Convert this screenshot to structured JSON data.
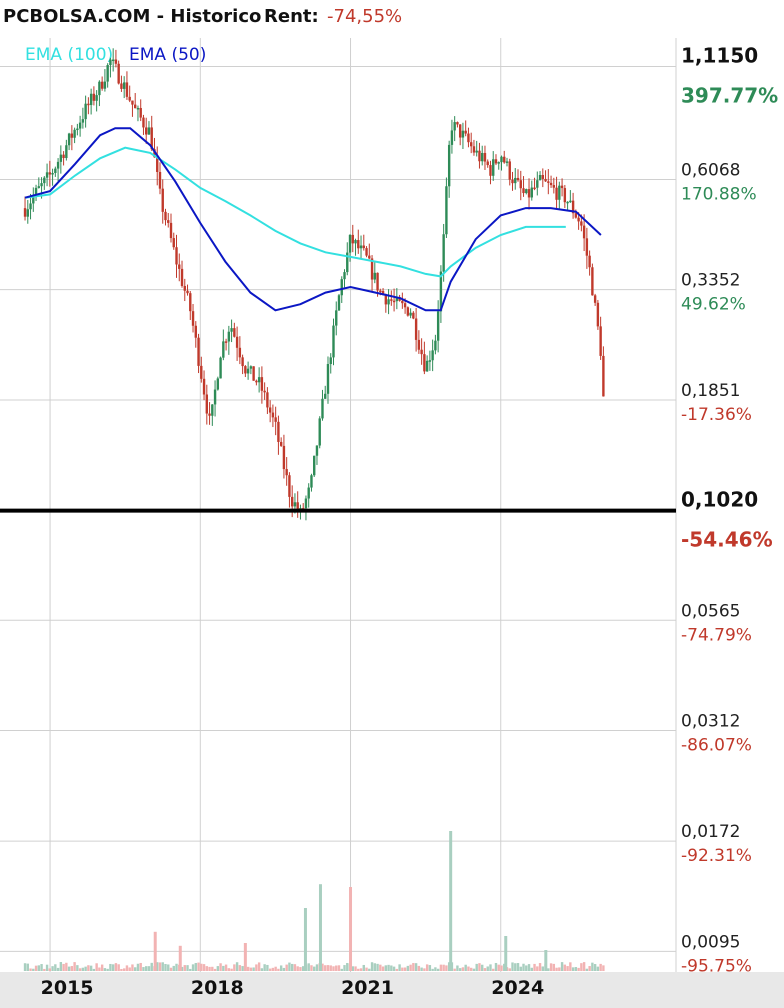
{
  "header": {
    "site": "PCBOLSA.COM - Historico",
    "rent_label": "Rent:",
    "rent_value": "-74,55%"
  },
  "legend": {
    "ema100_label": "EMA (100)",
    "ema50_label": "EMA (50)"
  },
  "colors": {
    "up": "#2e8b57",
    "down": "#c0392b",
    "ema100": "#33e0e0",
    "ema50": "#0b17c4",
    "grid": "#d0d0d0",
    "reference_line": "#000000",
    "vol_up": "#a9cfc0",
    "vol_down": "#f2b3b3",
    "pct_up": "#2e8b57",
    "pct_down": "#c0392b",
    "footer_bg": "#e8e8e8"
  },
  "chart_data": {
    "type": "candlestick",
    "y_scale": "log",
    "ylim": [
      0.0085,
      1.3
    ],
    "xlim": [
      2014.0,
      2027.5
    ],
    "reference_price": 0.102,
    "y_ticks": [
      {
        "price": "1,1150",
        "pct": "397.77%",
        "value": 1.115,
        "emphasis": true
      },
      {
        "price": "0,6068",
        "pct": "170.88%",
        "value": 0.6068,
        "emphasis": false
      },
      {
        "price": "0,3352",
        "pct": "49.62%",
        "value": 0.3352,
        "emphasis": false
      },
      {
        "price": "0,1851",
        "pct": "-17.36%",
        "value": 0.1851,
        "emphasis": false
      },
      {
        "price": "0,1020",
        "pct": "-54.46%",
        "value": 0.102,
        "emphasis": true
      },
      {
        "price": "0,0565",
        "pct": "-74.79%",
        "value": 0.0565,
        "emphasis": false
      },
      {
        "price": "0,0312",
        "pct": "-86.07%",
        "value": 0.0312,
        "emphasis": false
      },
      {
        "price": "0,0172",
        "pct": "-92.31%",
        "value": 0.0172,
        "emphasis": false
      },
      {
        "price": "0,0095",
        "pct": "-95.75%",
        "value": 0.0095,
        "emphasis": false
      }
    ],
    "x_ticks": [
      {
        "label": "2015",
        "value": 2015.0
      },
      {
        "label": "2018",
        "value": 2018.0
      },
      {
        "label": "2021",
        "value": 2021.0
      },
      {
        "label": "2024",
        "value": 2024.0
      }
    ],
    "price_path": [
      [
        2014.5,
        0.52
      ],
      [
        2014.7,
        0.56
      ],
      [
        2015.0,
        0.62
      ],
      [
        2015.3,
        0.72
      ],
      [
        2015.7,
        0.88
      ],
      [
        2016.0,
        1.0
      ],
      [
        2016.2,
        1.15
      ],
      [
        2016.4,
        1.05
      ],
      [
        2016.7,
        0.88
      ],
      [
        2017.0,
        0.78
      ],
      [
        2017.2,
        0.55
      ],
      [
        2017.5,
        0.4
      ],
      [
        2017.8,
        0.3
      ],
      [
        2018.0,
        0.22
      ],
      [
        2018.2,
        0.16
      ],
      [
        2018.4,
        0.24
      ],
      [
        2018.6,
        0.28
      ],
      [
        2018.9,
        0.22
      ],
      [
        2019.2,
        0.2
      ],
      [
        2019.5,
        0.16
      ],
      [
        2019.8,
        0.11
      ],
      [
        2020.0,
        0.1
      ],
      [
        2020.2,
        0.115
      ],
      [
        2020.5,
        0.2
      ],
      [
        2020.8,
        0.34
      ],
      [
        2021.0,
        0.44
      ],
      [
        2021.3,
        0.4
      ],
      [
        2021.6,
        0.33
      ],
      [
        2021.9,
        0.31
      ],
      [
        2022.2,
        0.3
      ],
      [
        2022.5,
        0.22
      ],
      [
        2022.7,
        0.26
      ],
      [
        2022.85,
        0.42
      ],
      [
        2023.0,
        0.82
      ],
      [
        2023.2,
        0.78
      ],
      [
        2023.5,
        0.7
      ],
      [
        2023.8,
        0.64
      ],
      [
        2024.0,
        0.7
      ],
      [
        2024.2,
        0.62
      ],
      [
        2024.5,
        0.55
      ],
      [
        2024.8,
        0.6
      ],
      [
        2025.0,
        0.58
      ],
      [
        2025.3,
        0.55
      ],
      [
        2025.6,
        0.48
      ],
      [
        2025.8,
        0.36
      ],
      [
        2026.0,
        0.24
      ],
      [
        2026.1,
        0.145
      ]
    ],
    "ema100": [
      [
        2014.5,
        0.55
      ],
      [
        2015.0,
        0.56
      ],
      [
        2015.5,
        0.62
      ],
      [
        2016.0,
        0.68
      ],
      [
        2016.5,
        0.72
      ],
      [
        2017.0,
        0.7
      ],
      [
        2017.5,
        0.64
      ],
      [
        2018.0,
        0.58
      ],
      [
        2018.5,
        0.54
      ],
      [
        2019.0,
        0.5
      ],
      [
        2019.5,
        0.46
      ],
      [
        2020.0,
        0.43
      ],
      [
        2020.5,
        0.41
      ],
      [
        2021.0,
        0.4
      ],
      [
        2021.5,
        0.39
      ],
      [
        2022.0,
        0.38
      ],
      [
        2022.5,
        0.365
      ],
      [
        2022.8,
        0.36
      ],
      [
        2023.0,
        0.38
      ],
      [
        2023.5,
        0.42
      ],
      [
        2024.0,
        0.45
      ],
      [
        2024.5,
        0.47
      ],
      [
        2025.0,
        0.47
      ],
      [
        2025.3,
        0.47
      ]
    ],
    "ema50": [
      [
        2014.5,
        0.55
      ],
      [
        2015.0,
        0.57
      ],
      [
        2015.5,
        0.66
      ],
      [
        2016.0,
        0.77
      ],
      [
        2016.3,
        0.8
      ],
      [
        2016.6,
        0.8
      ],
      [
        2017.0,
        0.73
      ],
      [
        2017.5,
        0.6
      ],
      [
        2018.0,
        0.48
      ],
      [
        2018.5,
        0.39
      ],
      [
        2019.0,
        0.33
      ],
      [
        2019.5,
        0.3
      ],
      [
        2020.0,
        0.31
      ],
      [
        2020.5,
        0.33
      ],
      [
        2021.0,
        0.34
      ],
      [
        2021.5,
        0.33
      ],
      [
        2022.0,
        0.32
      ],
      [
        2022.5,
        0.3
      ],
      [
        2022.8,
        0.3
      ],
      [
        2023.0,
        0.35
      ],
      [
        2023.5,
        0.44
      ],
      [
        2024.0,
        0.5
      ],
      [
        2024.5,
        0.52
      ],
      [
        2025.0,
        0.52
      ],
      [
        2025.5,
        0.51
      ],
      [
        2026.0,
        0.45
      ]
    ],
    "volume_spikes": [
      {
        "x": 2017.1,
        "rel": 0.28,
        "dir": "down"
      },
      {
        "x": 2017.6,
        "rel": 0.18,
        "dir": "down"
      },
      {
        "x": 2018.9,
        "rel": 0.2,
        "dir": "down"
      },
      {
        "x": 2020.1,
        "rel": 0.45,
        "dir": "up"
      },
      {
        "x": 2020.4,
        "rel": 0.62,
        "dir": "up"
      },
      {
        "x": 2021.0,
        "rel": 0.6,
        "dir": "down"
      },
      {
        "x": 2023.0,
        "rel": 1.0,
        "dir": "up"
      },
      {
        "x": 2024.1,
        "rel": 0.25,
        "dir": "up"
      },
      {
        "x": 2024.9,
        "rel": 0.15,
        "dir": "up"
      }
    ]
  }
}
